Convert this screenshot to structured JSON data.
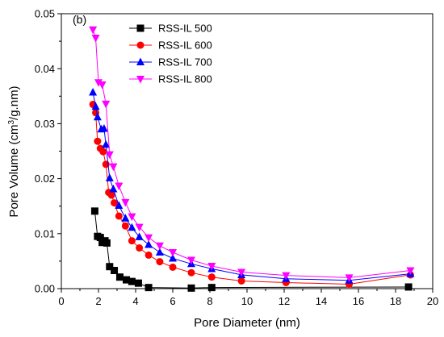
{
  "chart_data": {
    "type": "line",
    "panel_label": "(b)",
    "xlabel": "Pore Diameter (nm)",
    "ylabel_parts": [
      "Pore Volume (cm",
      "3",
      "/g.nm)"
    ],
    "xlim": [
      0,
      20
    ],
    "ylim": [
      0,
      0.05
    ],
    "x_ticks": [
      0,
      2,
      4,
      6,
      8,
      10,
      12,
      14,
      16,
      18,
      20
    ],
    "y_ticks": [
      0.0,
      0.01,
      0.02,
      0.03,
      0.04,
      0.05
    ],
    "y_tick_labels": [
      "0.00",
      "0.01",
      "0.02",
      "0.03",
      "0.04",
      "0.05"
    ],
    "grid": false,
    "legend_position": "top-left",
    "series": [
      {
        "name": "RSS-IL 500",
        "color": "#000000",
        "marker": "square",
        "points": [
          [
            1.8,
            0.0141
          ],
          [
            1.95,
            0.0095
          ],
          [
            2.1,
            0.0093
          ],
          [
            2.2,
            0.0084
          ],
          [
            2.35,
            0.0087
          ],
          [
            2.45,
            0.0083
          ],
          [
            2.6,
            0.004
          ],
          [
            2.85,
            0.0033
          ],
          [
            3.15,
            0.0021
          ],
          [
            3.5,
            0.0016
          ],
          [
            3.8,
            0.0013
          ],
          [
            4.15,
            0.001
          ],
          [
            4.7,
            0.0002
          ],
          [
            7.0,
            0.0001
          ],
          [
            8.1,
            0.0002
          ],
          [
            18.7,
            0.0003
          ]
        ]
      },
      {
        "name": "RSS-IL 600",
        "color": "#ff0000",
        "marker": "circle",
        "points": [
          [
            1.7,
            0.0335
          ],
          [
            1.85,
            0.032
          ],
          [
            1.95,
            0.0268
          ],
          [
            2.1,
            0.0255
          ],
          [
            2.25,
            0.0249
          ],
          [
            2.4,
            0.0226
          ],
          [
            2.55,
            0.0175
          ],
          [
            2.7,
            0.017
          ],
          [
            2.85,
            0.0156
          ],
          [
            3.1,
            0.0132
          ],
          [
            3.45,
            0.0114
          ],
          [
            3.8,
            0.0087
          ],
          [
            4.2,
            0.0074
          ],
          [
            4.7,
            0.0061
          ],
          [
            5.3,
            0.0049
          ],
          [
            6.0,
            0.0039
          ],
          [
            7.0,
            0.0029
          ],
          [
            8.1,
            0.0021
          ],
          [
            9.7,
            0.0014
          ],
          [
            12.1,
            0.0011
          ],
          [
            15.5,
            0.0008
          ],
          [
            18.8,
            0.0025
          ]
        ]
      },
      {
        "name": "RSS-IL 700",
        "color": "#0000ff",
        "marker": "triangle-up",
        "points": [
          [
            1.7,
            0.0357
          ],
          [
            1.85,
            0.0331
          ],
          [
            1.95,
            0.0312
          ],
          [
            2.15,
            0.029
          ],
          [
            2.3,
            0.0291
          ],
          [
            2.4,
            0.0262
          ],
          [
            2.6,
            0.0201
          ],
          [
            2.8,
            0.0181
          ],
          [
            3.1,
            0.0151
          ],
          [
            3.45,
            0.0128
          ],
          [
            3.8,
            0.0111
          ],
          [
            4.2,
            0.0094
          ],
          [
            4.7,
            0.008
          ],
          [
            5.3,
            0.0066
          ],
          [
            6.0,
            0.0055
          ],
          [
            7.0,
            0.0045
          ],
          [
            8.1,
            0.0036
          ],
          [
            9.7,
            0.0025
          ],
          [
            12.1,
            0.0018
          ],
          [
            15.5,
            0.0015
          ],
          [
            18.8,
            0.0027
          ]
        ]
      },
      {
        "name": "RSS-IL 800",
        "color": "#ff00ff",
        "marker": "triangle-down",
        "points": [
          [
            1.7,
            0.0471
          ],
          [
            1.85,
            0.0456
          ],
          [
            2.0,
            0.0375
          ],
          [
            2.2,
            0.0371
          ],
          [
            2.4,
            0.0336
          ],
          [
            2.6,
            0.0244
          ],
          [
            2.8,
            0.0222
          ],
          [
            3.1,
            0.0187
          ],
          [
            3.45,
            0.0157
          ],
          [
            3.8,
            0.0131
          ],
          [
            4.2,
            0.0112
          ],
          [
            4.7,
            0.0093
          ],
          [
            5.3,
            0.0078
          ],
          [
            6.0,
            0.0066
          ],
          [
            7.0,
            0.0052
          ],
          [
            8.1,
            0.0041
          ],
          [
            9.7,
            0.003
          ],
          [
            12.1,
            0.0024
          ],
          [
            15.5,
            0.002
          ],
          [
            18.8,
            0.0033
          ]
        ]
      }
    ]
  }
}
